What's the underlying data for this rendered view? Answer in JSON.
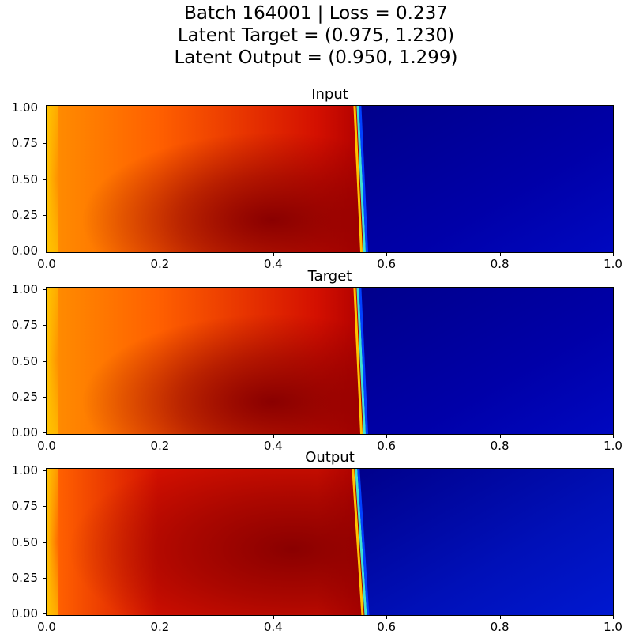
{
  "figure": {
    "title_lines": [
      "Batch 164001  |  Loss = 0.237",
      "Latent Target = (0.975, 1.230)",
      "Latent Output = (0.950, 1.299)"
    ]
  },
  "chart_data": [
    {
      "type": "heatmap",
      "title": "Input",
      "xlim": [
        0.0,
        1.0
      ],
      "ylim": [
        0.0,
        1.0
      ],
      "xticks": [
        "0.0",
        "0.2",
        "0.4",
        "0.6",
        "0.8",
        "1.0"
      ],
      "yticks": [
        "0.00",
        "0.25",
        "0.50",
        "0.75",
        "1.00"
      ],
      "colormap": "jet",
      "front_x_top": 0.548,
      "front_x_bottom": 0.56,
      "hot_region": {
        "x": 0.39,
        "y": 0.22,
        "description": "dark red core"
      },
      "left_edge_value": "yellow-orange",
      "right_region_value": "dark blue"
    },
    {
      "type": "heatmap",
      "title": "Target",
      "xlim": [
        0.0,
        1.0
      ],
      "ylim": [
        0.0,
        1.0
      ],
      "xticks": [
        "0.0",
        "0.2",
        "0.4",
        "0.6",
        "0.8",
        "1.0"
      ],
      "yticks": [
        "0.00",
        "0.25",
        "0.50",
        "0.75",
        "1.00"
      ],
      "colormap": "jet",
      "front_x_top": 0.548,
      "front_x_bottom": 0.56,
      "hot_region": {
        "x": 0.39,
        "y": 0.22,
        "description": "dark red core"
      },
      "left_edge_value": "yellow-orange",
      "right_region_value": "dark blue"
    },
    {
      "type": "heatmap",
      "title": "Output",
      "xlim": [
        0.0,
        1.0
      ],
      "ylim": [
        0.0,
        1.0
      ],
      "xticks": [
        "0.0",
        "0.2",
        "0.4",
        "0.6",
        "0.8",
        "1.0"
      ],
      "yticks": [
        "0.00",
        "0.25",
        "0.50",
        "0.75",
        "1.00"
      ],
      "colormap": "jet",
      "front_x_top": 0.545,
      "front_x_bottom": 0.562,
      "hot_region": {
        "x": 0.42,
        "y": 0.45,
        "description": "broad red band"
      },
      "left_edge_value": "orange",
      "right_region_value": "blue"
    }
  ],
  "colors": {
    "yellow": "#ffc400",
    "orange": "#ff6000",
    "red": "#d41000",
    "dark_red": "#8a0000",
    "cyan": "#40e0d0",
    "blue": "#0000c8",
    "dark_blue": "#00008b"
  }
}
